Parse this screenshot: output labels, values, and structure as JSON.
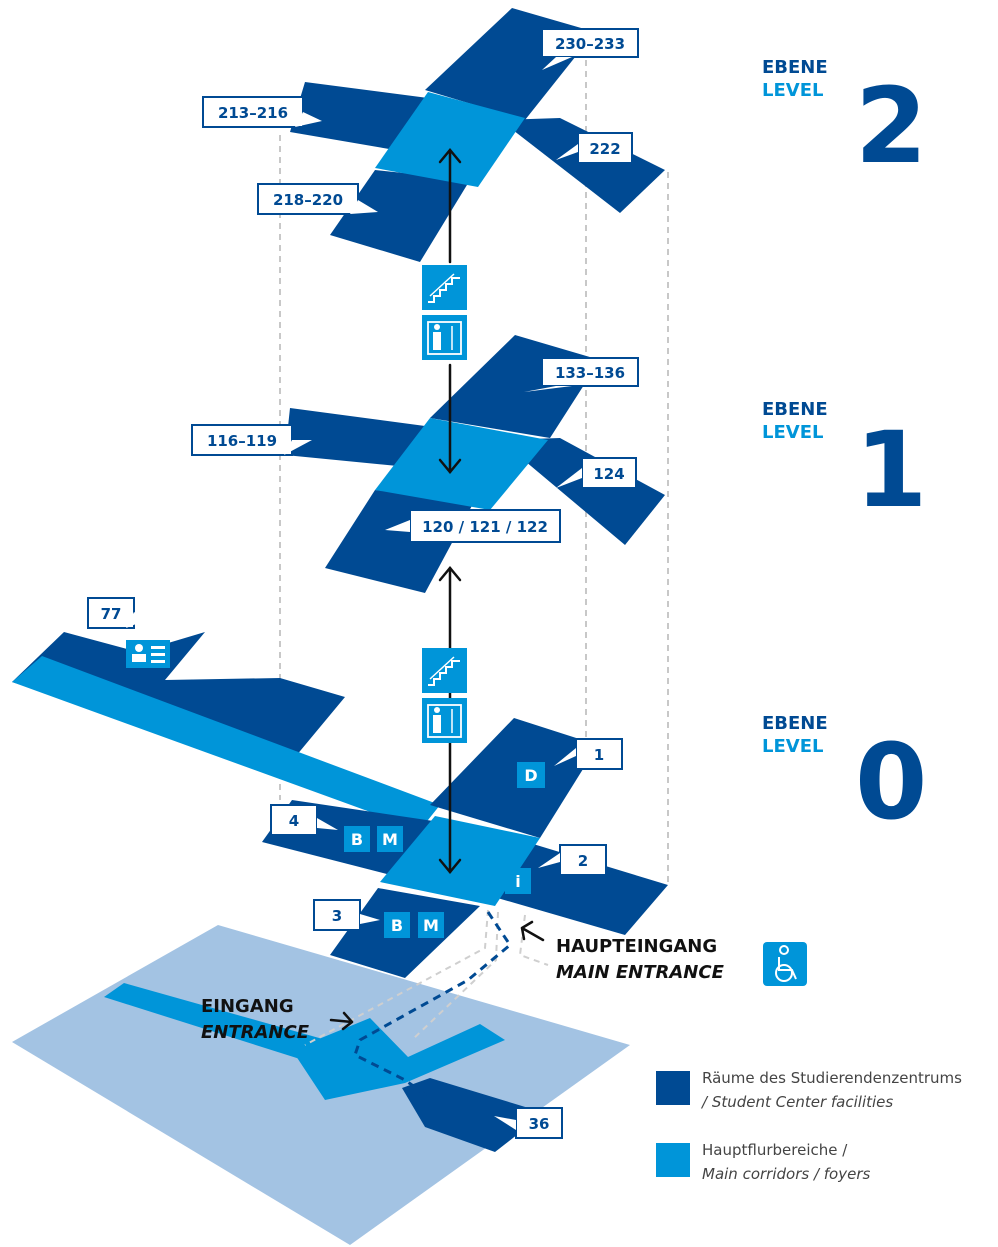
{
  "levels": [
    {
      "de": "EBENE",
      "en": "LEVEL",
      "number": "2"
    },
    {
      "de": "EBENE",
      "en": "LEVEL",
      "number": "1"
    },
    {
      "de": "EBENE",
      "en": "LEVEL",
      "number": "0"
    }
  ],
  "room_labels": {
    "r230": "230–233",
    "r213": "213–216",
    "r222": "222",
    "r218": "218–220",
    "r133": "133–136",
    "r116": "116–119",
    "r124": "124",
    "r120": "120 / 121 / 122",
    "r77": "77",
    "r1": "1",
    "r4": "4",
    "r2": "2",
    "r3": "3",
    "r36": "36"
  },
  "badges": {
    "d": "D",
    "b": "B",
    "m": "M",
    "i": "i"
  },
  "entrances": {
    "main_de": "HAUPTEINGANG",
    "main_en": "MAIN ENTRANCE",
    "side_de": "EINGANG",
    "side_en": "ENTRANCE"
  },
  "legend": {
    "facilities_de": "Räume des Studierendenzentrums",
    "facilities_en": "/ Student Center facilities",
    "corridors_de": "Hauptflurbereiche /",
    "corridors_en": "Main corridors / foyers"
  },
  "colors": {
    "facilities": "#004a93",
    "corridors": "#0095d9",
    "ground": "#a3c3e3"
  },
  "icons": [
    "stairs-icon",
    "elevator-icon",
    "id-card-icon",
    "wheelchair-icon"
  ]
}
